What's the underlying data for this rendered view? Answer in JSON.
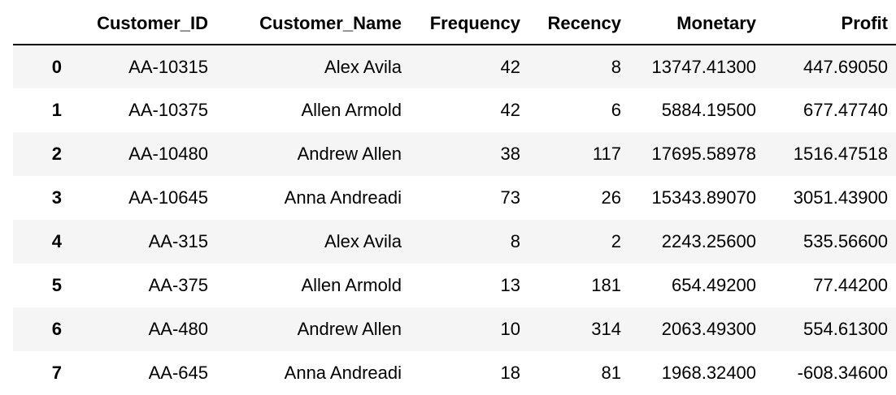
{
  "table": {
    "columns": [
      "",
      "Customer_ID",
      "Customer_Name",
      "Frequency",
      "Recency",
      "Monetary",
      "Profit"
    ],
    "rows": [
      {
        "index": "0",
        "Customer_ID": "AA-10315",
        "Customer_Name": "Alex Avila",
        "Frequency": "42",
        "Recency": "8",
        "Monetary": "13747.41300",
        "Profit": "447.69050"
      },
      {
        "index": "1",
        "Customer_ID": "AA-10375",
        "Customer_Name": "Allen Armold",
        "Frequency": "42",
        "Recency": "6",
        "Monetary": "5884.19500",
        "Profit": "677.47740"
      },
      {
        "index": "2",
        "Customer_ID": "AA-10480",
        "Customer_Name": "Andrew Allen",
        "Frequency": "38",
        "Recency": "117",
        "Monetary": "17695.58978",
        "Profit": "1516.47518"
      },
      {
        "index": "3",
        "Customer_ID": "AA-10645",
        "Customer_Name": "Anna Andreadi",
        "Frequency": "73",
        "Recency": "26",
        "Monetary": "15343.89070",
        "Profit": "3051.43900"
      },
      {
        "index": "4",
        "Customer_ID": "AA-315",
        "Customer_Name": "Alex Avila",
        "Frequency": "8",
        "Recency": "2",
        "Monetary": "2243.25600",
        "Profit": "535.56600"
      },
      {
        "index": "5",
        "Customer_ID": "AA-375",
        "Customer_Name": "Allen Armold",
        "Frequency": "13",
        "Recency": "181",
        "Monetary": "654.49200",
        "Profit": "77.44200"
      },
      {
        "index": "6",
        "Customer_ID": "AA-480",
        "Customer_Name": "Andrew Allen",
        "Frequency": "10",
        "Recency": "314",
        "Monetary": "2063.49300",
        "Profit": "554.61300"
      },
      {
        "index": "7",
        "Customer_ID": "AA-645",
        "Customer_Name": "Anna Andreadi",
        "Frequency": "18",
        "Recency": "81",
        "Monetary": "1968.32400",
        "Profit": "-608.34600"
      }
    ]
  }
}
